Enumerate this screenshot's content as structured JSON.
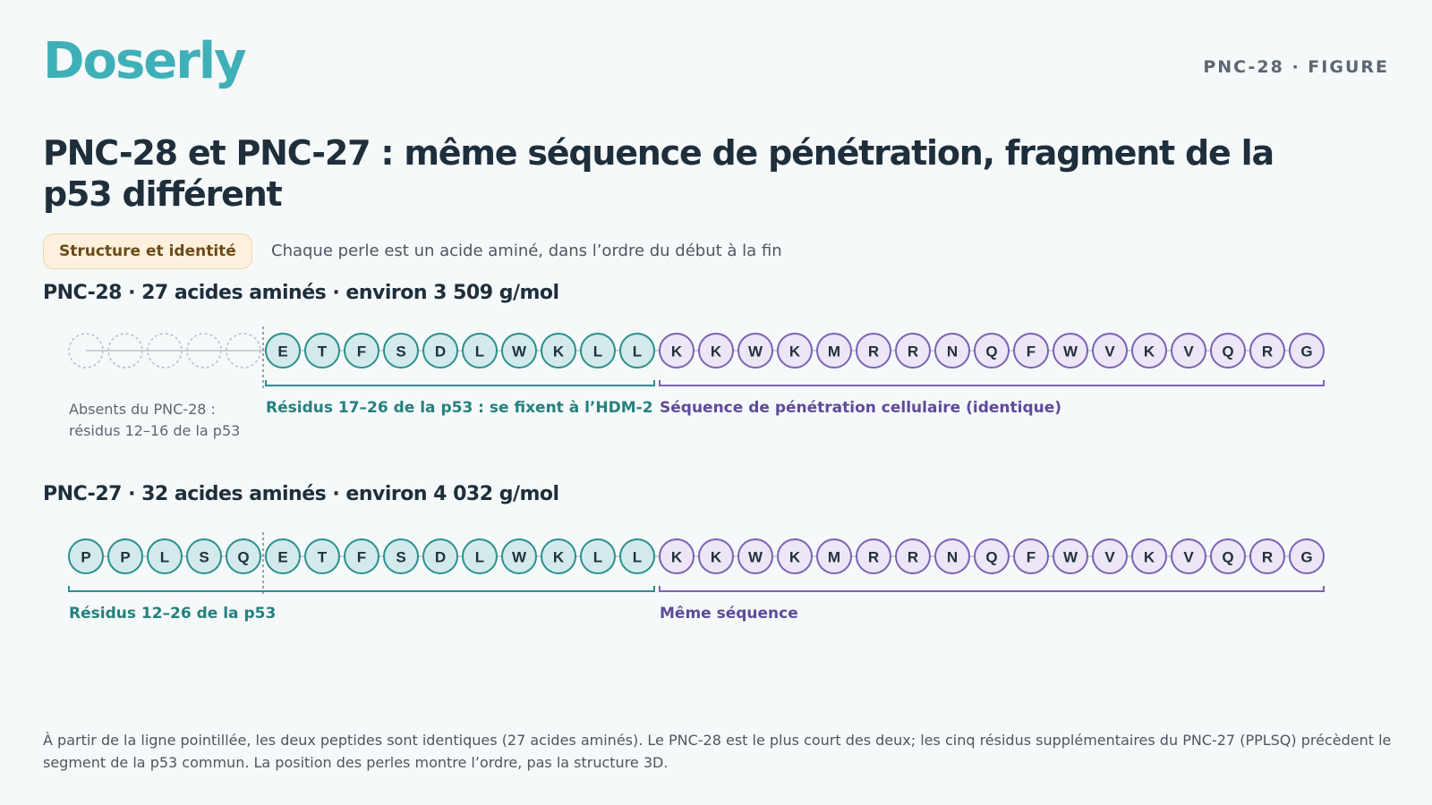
{
  "brand": {
    "logo": "Doserly",
    "tag": "PNC-28 · FIGURE"
  },
  "title": "PNC-28 et PNC-27 : même séquence de pénétration, fragment de la p53 différent",
  "pill": "Structure et identité",
  "intro": "Chaque perle est un acide aminé, dans l’ordre du début à la fin",
  "colors": {
    "teal": "#2b8f8c",
    "teal_fill": "#d3eaec",
    "purple": "#7b62b5",
    "purple_fill": "#ece6f6",
    "absent": "#b4bcc2"
  },
  "rows": [
    {
      "title": "PNC-28 · 27 acides aminés · environ 3 509 g/mol",
      "absent_count": 5,
      "p53_segment": [
        "E",
        "T",
        "F",
        "S",
        "D",
        "L",
        "W",
        "K",
        "L",
        "L"
      ],
      "cpp_segment": [
        "K",
        "K",
        "W",
        "K",
        "M",
        "R",
        "R",
        "N",
        "Q",
        "F",
        "W",
        "V",
        "K",
        "V",
        "Q",
        "R",
        "G"
      ],
      "absent_label": "Absents du PNC-28 : résidus 12–16 de la p53",
      "p53_label": "Résidus 17–26 de la p53 : se fixent à l’HDM-2",
      "cpp_label": "Séquence de pénétration cellulaire (identique)"
    },
    {
      "title": "PNC-27 · 32 acides aminés · environ 4 032 g/mol",
      "absent_count": 0,
      "p53_segment": [
        "P",
        "P",
        "L",
        "S",
        "Q",
        "E",
        "T",
        "F",
        "S",
        "D",
        "L",
        "W",
        "K",
        "L",
        "L"
      ],
      "cpp_segment": [
        "K",
        "K",
        "W",
        "K",
        "M",
        "R",
        "R",
        "N",
        "Q",
        "F",
        "W",
        "V",
        "K",
        "V",
        "Q",
        "R",
        "G"
      ],
      "p53_label": "Résidus 12–26 de la p53",
      "cpp_label": "Même séquence"
    }
  ],
  "footnote": "À partir de la ligne pointillée, les deux peptides sont identiques (27 acides aminés). Le PNC-28 est le plus court des deux; les cinq résidus supplémentaires du PNC-27 (PPLSQ) précèdent le segment de la p53 commun. La position des perles montre l’ordre, pas la structure 3D."
}
